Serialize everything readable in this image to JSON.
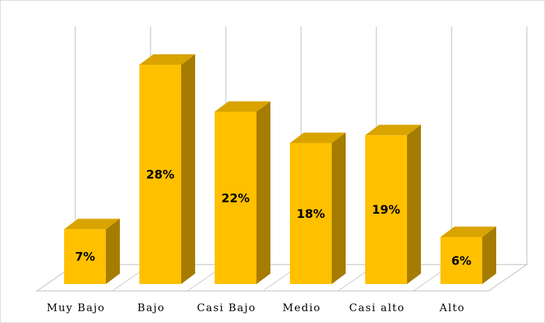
{
  "chart_data": {
    "type": "bar",
    "style": "3d-column",
    "categories": [
      "Muy Bajo",
      "Bajo",
      "Casi Bajo",
      "Medio",
      "Casi alto",
      "Alto"
    ],
    "values": [
      7,
      28,
      22,
      18,
      19,
      6
    ],
    "data_labels": [
      "7%",
      "28%",
      "22%",
      "18%",
      "19%",
      "6%"
    ],
    "ylim": [
      0,
      32
    ],
    "grid": "vertical",
    "legend": "none",
    "colors": {
      "bar_front": "#FFC000",
      "bar_top": "#D9A300",
      "bar_side": "#A67C00",
      "grid": "#d0d0d0"
    }
  }
}
